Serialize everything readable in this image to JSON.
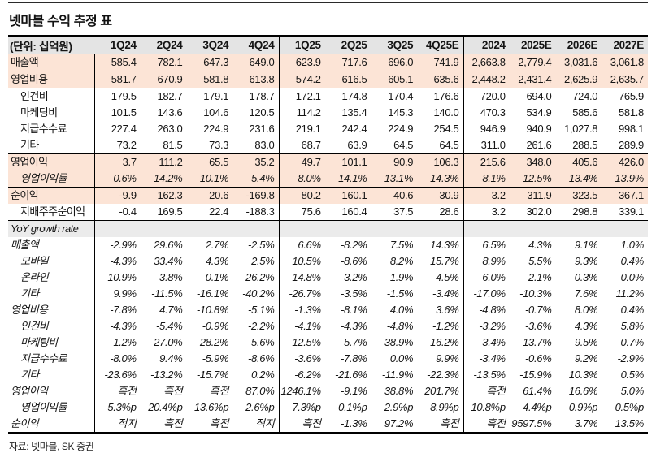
{
  "title": "넷마블 수익 추정 표",
  "footer": "자료: 넷마블, SK 증권",
  "colors": {
    "highlight_row": "#fce4d6",
    "header_bg": "#e4e4e4",
    "section_bg": "#ebebeb",
    "rule": "#000000"
  },
  "table": {
    "unit_label": "(단위: 십억원)",
    "columns": [
      "1Q24",
      "2Q24",
      "3Q24",
      "4Q24",
      "1Q25",
      "2Q25",
      "3Q25",
      "4Q25E",
      "2024",
      "2025E",
      "2026E",
      "2027E"
    ],
    "rows": [
      {
        "label": "매출액",
        "highlight": true,
        "italic": false,
        "indent": false,
        "section": false,
        "border_top": false,
        "values": [
          "585.4",
          "782.1",
          "647.3",
          "649.0",
          "623.9",
          "717.6",
          "696.0",
          "741.9",
          "2,663.8",
          "2,779.4",
          "3,031.6",
          "3,061.8"
        ]
      },
      {
        "label": "영업비용",
        "highlight": true,
        "italic": false,
        "indent": false,
        "section": false,
        "border_top": true,
        "values": [
          "581.7",
          "670.9",
          "581.8",
          "613.8",
          "574.2",
          "616.5",
          "605.1",
          "635.6",
          "2,448.2",
          "2,431.4",
          "2,625.9",
          "2,635.7"
        ]
      },
      {
        "label": "인건비",
        "highlight": false,
        "italic": false,
        "indent": true,
        "section": false,
        "border_top": true,
        "values": [
          "179.5",
          "182.7",
          "179.1",
          "178.7",
          "172.1",
          "174.8",
          "170.4",
          "176.6",
          "720.0",
          "694.0",
          "724.0",
          "765.9"
        ]
      },
      {
        "label": "마케팅비",
        "highlight": false,
        "italic": false,
        "indent": true,
        "section": false,
        "border_top": false,
        "values": [
          "101.5",
          "143.6",
          "104.6",
          "120.5",
          "114.2",
          "135.4",
          "145.3",
          "140.0",
          "470.3",
          "534.9",
          "585.6",
          "581.8"
        ]
      },
      {
        "label": "지급수수료",
        "highlight": false,
        "italic": false,
        "indent": true,
        "section": false,
        "border_top": false,
        "values": [
          "227.4",
          "263.0",
          "224.9",
          "231.6",
          "219.1",
          "242.4",
          "224.9",
          "254.5",
          "946.9",
          "940.9",
          "1,027.8",
          "998.1"
        ]
      },
      {
        "label": "기타",
        "highlight": false,
        "italic": false,
        "indent": true,
        "section": false,
        "border_top": false,
        "values": [
          "73.2",
          "81.5",
          "73.3",
          "83.0",
          "68.7",
          "63.9",
          "64.5",
          "64.5",
          "311.0",
          "261.6",
          "288.5",
          "289.9"
        ]
      },
      {
        "label": "영업이익",
        "highlight": true,
        "italic": false,
        "indent": false,
        "section": false,
        "border_top": true,
        "values": [
          "3.7",
          "111.2",
          "65.5",
          "35.2",
          "49.7",
          "101.1",
          "90.9",
          "106.3",
          "215.6",
          "348.0",
          "405.6",
          "426.0"
        ]
      },
      {
        "label": "영업이익률",
        "highlight": true,
        "italic": true,
        "indent": true,
        "section": false,
        "border_top": false,
        "values": [
          "0.6%",
          "14.2%",
          "10.1%",
          "5.4%",
          "8.0%",
          "14.1%",
          "13.1%",
          "14.3%",
          "8.1%",
          "12.5%",
          "13.4%",
          "13.9%"
        ]
      },
      {
        "label": "순이익",
        "highlight": true,
        "italic": false,
        "indent": false,
        "section": false,
        "border_top": true,
        "values": [
          "-9.9",
          "162.3",
          "20.6",
          "-169.8",
          "80.2",
          "160.1",
          "40.6",
          "30.9",
          "3.2",
          "311.9",
          "323.5",
          "367.1"
        ]
      },
      {
        "label": "지배주주순이익",
        "highlight": false,
        "italic": false,
        "indent": true,
        "section": false,
        "border_top": false,
        "values": [
          "-0.4",
          "169.5",
          "22.4",
          "-188.3",
          "75.6",
          "160.4",
          "37.5",
          "28.6",
          "3.2",
          "302.0",
          "298.8",
          "339.1"
        ]
      },
      {
        "label": "YoY growth rate",
        "highlight": false,
        "italic": true,
        "indent": false,
        "section": true,
        "border_top": true,
        "values": [
          "",
          "",
          "",
          "",
          "",
          "",
          "",
          "",
          "",
          "",
          "",
          ""
        ]
      },
      {
        "label": "매출액",
        "highlight": false,
        "italic": true,
        "indent": false,
        "section": false,
        "border_top": false,
        "values": [
          "-2.9%",
          "29.6%",
          "2.7%",
          "-2.5%",
          "6.6%",
          "-8.2%",
          "7.5%",
          "14.3%",
          "6.5%",
          "4.3%",
          "9.1%",
          "1.0%"
        ]
      },
      {
        "label": "모바일",
        "highlight": false,
        "italic": true,
        "indent": true,
        "section": false,
        "border_top": false,
        "values": [
          "-4.3%",
          "33.4%",
          "4.3%",
          "2.5%",
          "10.5%",
          "-8.6%",
          "8.2%",
          "15.7%",
          "8.9%",
          "5.5%",
          "9.3%",
          "0.4%"
        ]
      },
      {
        "label": "온라인",
        "highlight": false,
        "italic": true,
        "indent": true,
        "section": false,
        "border_top": false,
        "values": [
          "10.9%",
          "-3.8%",
          "-0.1%",
          "-26.2%",
          "-14.8%",
          "3.2%",
          "1.9%",
          "4.5%",
          "-6.0%",
          "-2.1%",
          "-0.3%",
          "0.0%"
        ]
      },
      {
        "label": "기타",
        "highlight": false,
        "italic": true,
        "indent": true,
        "section": false,
        "border_top": false,
        "values": [
          "9.9%",
          "-11.5%",
          "-16.1%",
          "-40.2%",
          "-26.7%",
          "-3.5%",
          "-1.5%",
          "-3.4%",
          "-17.0%",
          "-10.3%",
          "7.6%",
          "11.2%"
        ]
      },
      {
        "label": "영업비용",
        "highlight": false,
        "italic": true,
        "indent": false,
        "section": false,
        "border_top": false,
        "values": [
          "-7.8%",
          "4.7%",
          "-10.8%",
          "-5.1%",
          "-1.3%",
          "-8.1%",
          "4.0%",
          "3.6%",
          "-4.8%",
          "-0.7%",
          "8.0%",
          "0.4%"
        ]
      },
      {
        "label": "인건비",
        "highlight": false,
        "italic": true,
        "indent": true,
        "section": false,
        "border_top": false,
        "values": [
          "-4.3%",
          "-5.4%",
          "-0.9%",
          "-2.2%",
          "-4.1%",
          "-4.3%",
          "-4.8%",
          "-1.2%",
          "-3.2%",
          "-3.6%",
          "4.3%",
          "5.8%"
        ]
      },
      {
        "label": "마케팅비",
        "highlight": false,
        "italic": true,
        "indent": true,
        "section": false,
        "border_top": false,
        "values": [
          "1.2%",
          "27.0%",
          "-28.2%",
          "-5.6%",
          "12.5%",
          "-5.7%",
          "38.9%",
          "16.2%",
          "-3.4%",
          "13.7%",
          "9.5%",
          "-0.7%"
        ]
      },
      {
        "label": "지급수수료",
        "highlight": false,
        "italic": true,
        "indent": true,
        "section": false,
        "border_top": false,
        "values": [
          "-8.0%",
          "9.4%",
          "-5.9%",
          "-8.6%",
          "-3.6%",
          "-7.8%",
          "0.0%",
          "9.9%",
          "-3.4%",
          "-0.6%",
          "9.2%",
          "-2.9%"
        ]
      },
      {
        "label": "기타",
        "highlight": false,
        "italic": true,
        "indent": true,
        "section": false,
        "border_top": false,
        "values": [
          "-23.6%",
          "-13.2%",
          "-15.7%",
          "0.2%",
          "-6.2%",
          "-21.6%",
          "-11.9%",
          "-22.3%",
          "-13.5%",
          "-15.9%",
          "10.3%",
          "0.5%"
        ]
      },
      {
        "label": "영업이익",
        "highlight": false,
        "italic": true,
        "indent": false,
        "section": false,
        "border_top": false,
        "values": [
          "흑전",
          "흑전",
          "흑전",
          "87.0%",
          "1246.1%",
          "-9.1%",
          "38.8%",
          "201.7%",
          "흑전",
          "61.4%",
          "16.6%",
          "5.0%"
        ]
      },
      {
        "label": "영업이익률",
        "highlight": false,
        "italic": true,
        "indent": true,
        "section": false,
        "border_top": false,
        "values": [
          "5.3%p",
          "20.4%p",
          "13.6%p",
          "2.6%p",
          "7.3%p",
          "-0.1%p",
          "2.9%p",
          "8.9%p",
          "10.8%p",
          "4.4%p",
          "0.9%p",
          "0.5%p"
        ]
      },
      {
        "label": "순이익",
        "highlight": false,
        "italic": true,
        "indent": false,
        "section": false,
        "border_top": false,
        "values": [
          "적지",
          "흑전",
          "흑전",
          "적지",
          "흑전",
          "-1.3%",
          "97.2%",
          "흑전",
          "흑전",
          "9597.5%",
          "3.7%",
          "13.5%"
        ]
      }
    ]
  }
}
